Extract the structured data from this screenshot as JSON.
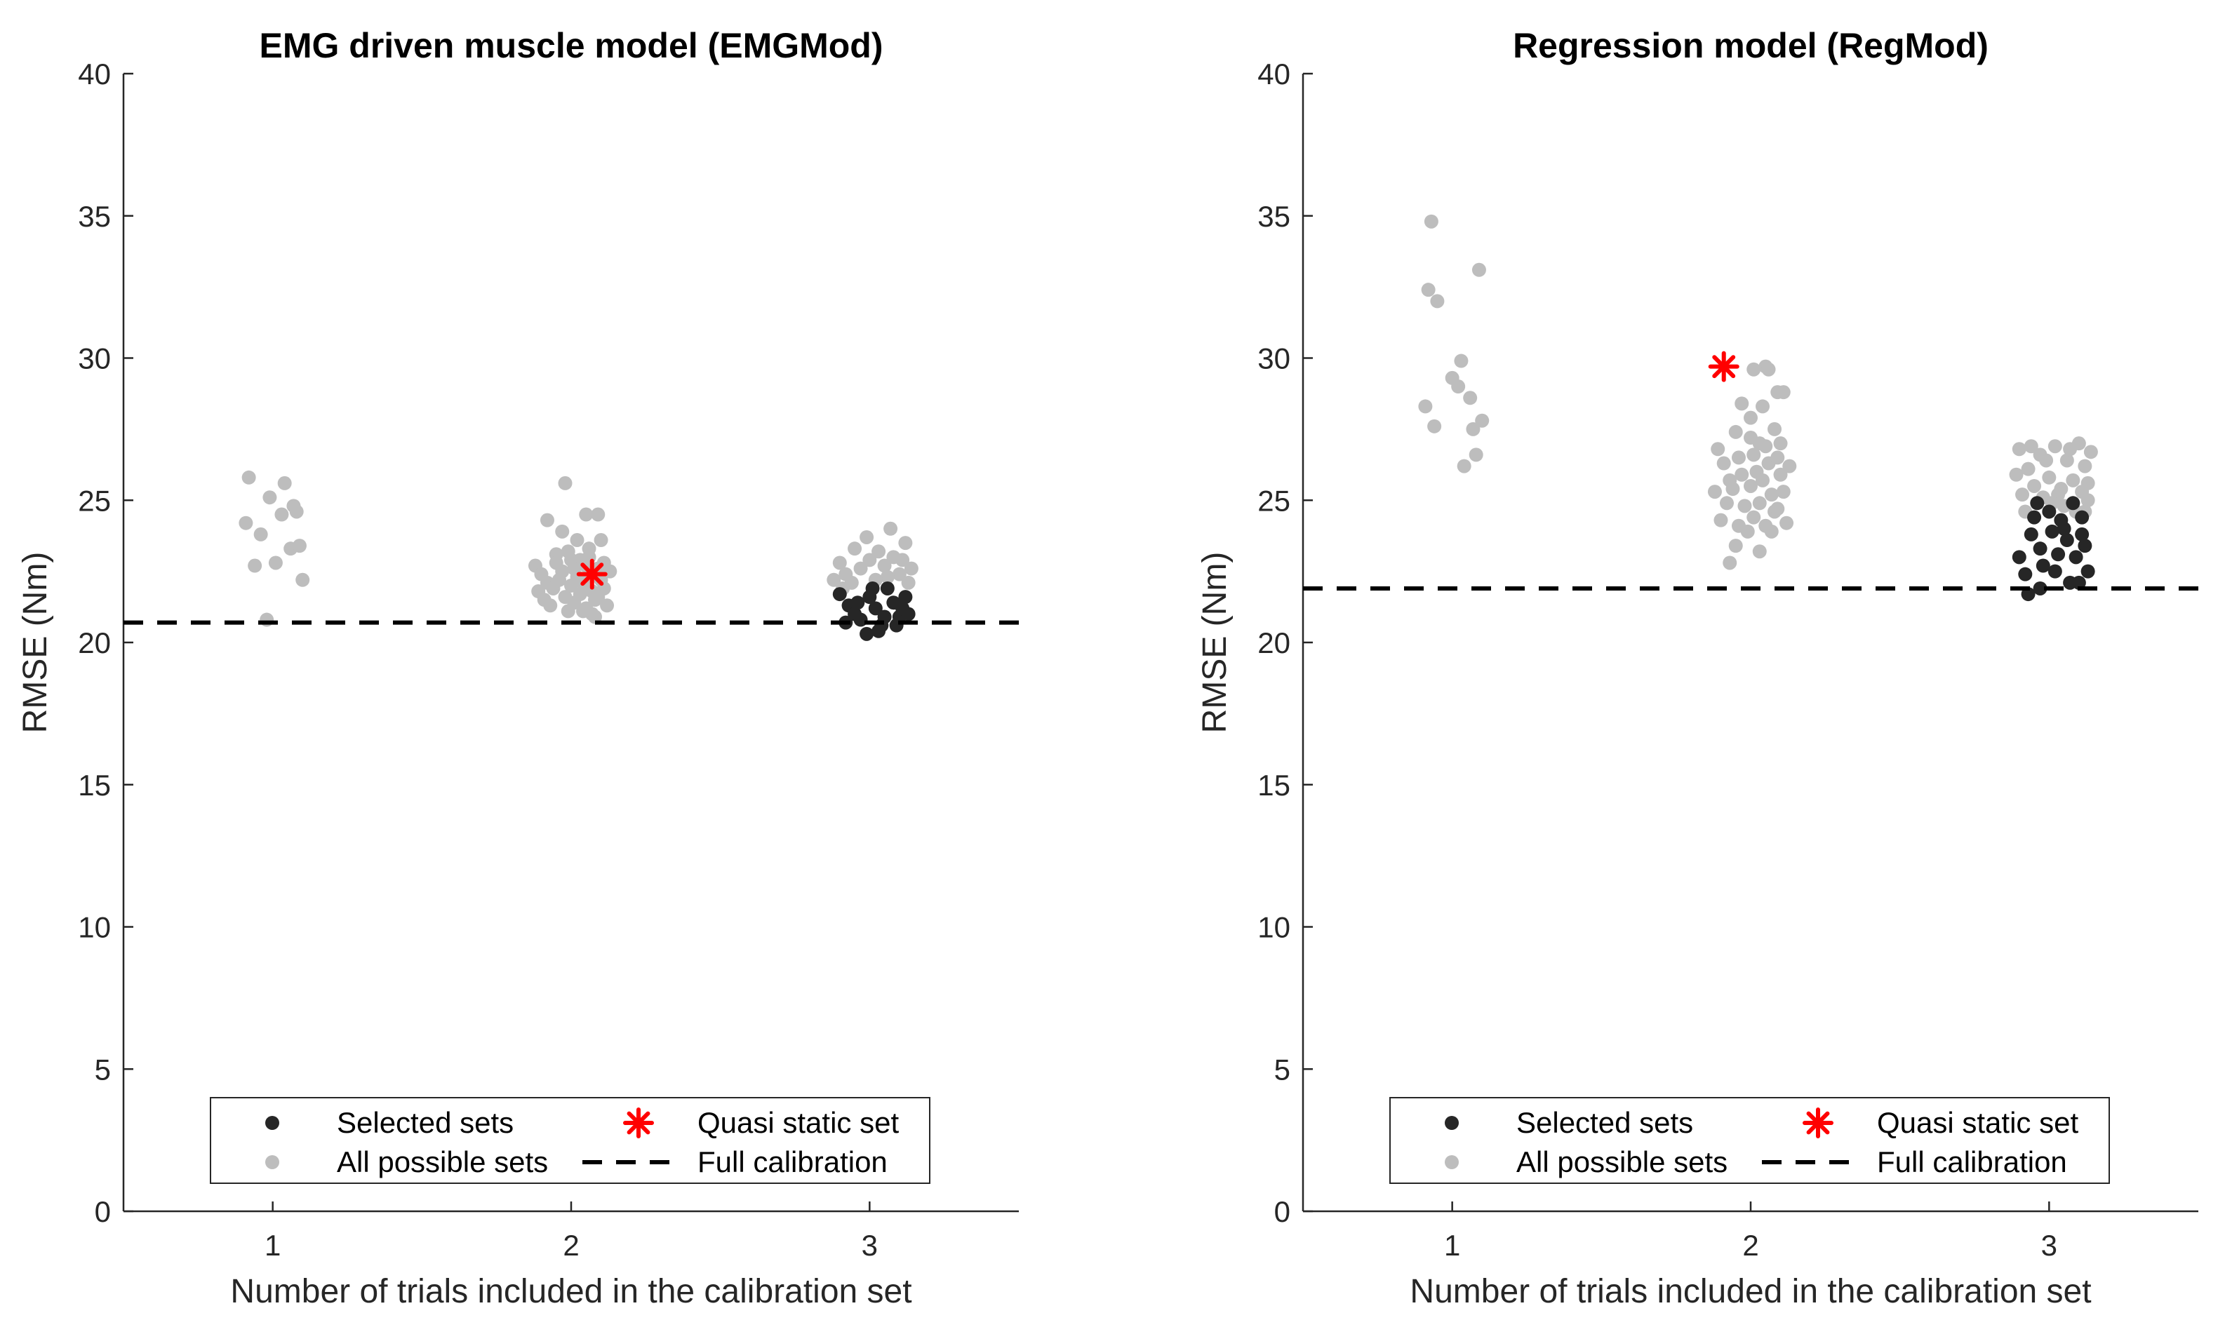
{
  "chart_data": [
    {
      "type": "scatter",
      "title": "EMG driven muscle model (EMGMod)",
      "xlabel": "Number of trials included in the calibration set",
      "ylabel": "RMSE (Nm)",
      "xlim": [
        0.5,
        3.5
      ],
      "ylim": [
        0,
        40
      ],
      "xticks": [
        1,
        2,
        3
      ],
      "yticks": [
        0,
        5,
        10,
        15,
        20,
        25,
        30,
        35,
        40
      ],
      "grid": false,
      "legend_position": "bottom",
      "legend": [
        "Selected sets",
        "Quasi static set",
        "All possible sets",
        "Full calibration"
      ],
      "colors": {
        "all": "#bdbdbd",
        "selected": "#262626",
        "quasi": "#ff0000",
        "line": "#000000"
      },
      "full_calibration": 20.7,
      "series": [
        {
          "name": "All possible sets",
          "points": [
            [
              0.92,
              25.8
            ],
            [
              0.99,
              25.1
            ],
            [
              1.04,
              25.6
            ],
            [
              1.07,
              24.8
            ],
            [
              0.91,
              24.2
            ],
            [
              1.03,
              24.5
            ],
            [
              1.08,
              24.6
            ],
            [
              0.96,
              23.8
            ],
            [
              1.06,
              23.3
            ],
            [
              1.09,
              23.4
            ],
            [
              1.01,
              22.8
            ],
            [
              0.94,
              22.7
            ],
            [
              1.1,
              22.2
            ],
            [
              0.98,
              20.8
            ],
            [
              1.92,
              24.3
            ],
            [
              1.98,
              25.6
            ],
            [
              2.05,
              24.5
            ],
            [
              2.09,
              24.5
            ],
            [
              1.97,
              23.9
            ],
            [
              2.02,
              23.6
            ],
            [
              2.1,
              23.6
            ],
            [
              2.06,
              23.3
            ],
            [
              1.95,
              23.1
            ],
            [
              2.03,
              22.9
            ],
            [
              1.88,
              22.7
            ],
            [
              1.9,
              22.4
            ],
            [
              1.92,
              22.1
            ],
            [
              1.89,
              21.8
            ],
            [
              1.91,
              21.5
            ],
            [
              1.95,
              22.8
            ],
            [
              1.97,
              22.5
            ],
            [
              1.96,
              22.2
            ],
            [
              1.94,
              21.9
            ],
            [
              1.98,
              21.6
            ],
            [
              2.0,
              22.9
            ],
            [
              2.01,
              22.6
            ],
            [
              2.02,
              22.3
            ],
            [
              2.0,
              22.0
            ],
            [
              2.03,
              21.7
            ],
            [
              2.01,
              21.4
            ],
            [
              2.05,
              22.7
            ],
            [
              2.06,
              22.4
            ],
            [
              2.04,
              22.1
            ],
            [
              2.07,
              21.8
            ],
            [
              2.08,
              21.5
            ],
            [
              2.05,
              21.2
            ],
            [
              2.09,
              22.6
            ],
            [
              2.1,
              22.2
            ],
            [
              2.11,
              21.9
            ],
            [
              2.09,
              21.6
            ],
            [
              2.12,
              21.3
            ],
            [
              2.07,
              21.0
            ],
            [
              2.08,
              20.9
            ],
            [
              2.04,
              21.1
            ],
            [
              1.93,
              21.3
            ],
            [
              1.99,
              21.1
            ],
            [
              2.06,
              23.0
            ],
            [
              1.99,
              23.2
            ],
            [
              2.11,
              22.8
            ],
            [
              2.13,
              22.5
            ],
            [
              2.9,
              22.8
            ],
            [
              2.92,
              22.4
            ],
            [
              2.95,
              23.3
            ],
            [
              2.97,
              22.6
            ],
            [
              3.0,
              22.9
            ],
            [
              3.03,
              23.2
            ],
            [
              3.05,
              22.7
            ],
            [
              3.07,
              24.0
            ],
            [
              3.08,
              23.0
            ],
            [
              3.1,
              22.4
            ],
            [
              3.12,
              23.5
            ],
            [
              3.13,
              22.1
            ],
            [
              3.06,
              22.3
            ],
            [
              3.02,
              22.2
            ],
            [
              2.94,
              22.1
            ],
            [
              2.88,
              22.2
            ],
            [
              2.99,
              23.7
            ],
            [
              3.11,
              22.9
            ],
            [
              2.91,
              21.9
            ],
            [
              3.14,
              22.6
            ]
          ]
        },
        {
          "name": "Selected sets",
          "points": [
            [
              2.9,
              21.7
            ],
            [
              2.93,
              21.3
            ],
            [
              2.95,
              21.0
            ],
            [
              2.97,
              20.8
            ],
            [
              2.99,
              20.3
            ],
            [
              3.0,
              21.6
            ],
            [
              3.02,
              21.2
            ],
            [
              3.04,
              20.6
            ],
            [
              3.06,
              21.9
            ],
            [
              3.08,
              21.4
            ],
            [
              3.1,
              20.9
            ],
            [
              3.12,
              21.6
            ],
            [
              3.13,
              21.0
            ],
            [
              2.92,
              20.7
            ],
            [
              3.01,
              21.9
            ],
            [
              3.05,
              20.9
            ],
            [
              2.96,
              21.4
            ],
            [
              3.09,
              20.6
            ],
            [
              3.03,
              20.4
            ],
            [
              3.11,
              21.2
            ]
          ]
        },
        {
          "name": "Quasi static set",
          "points": [
            [
              2.07,
              22.4
            ]
          ]
        }
      ]
    },
    {
      "type": "scatter",
      "title": "Regression model (RegMod)",
      "xlabel": "Number of trials included in the calibration set",
      "ylabel": "RMSE (Nm)",
      "xlim": [
        0.5,
        3.5
      ],
      "ylim": [
        0,
        40
      ],
      "xticks": [
        1,
        2,
        3
      ],
      "yticks": [
        0,
        5,
        10,
        15,
        20,
        25,
        30,
        35,
        40
      ],
      "grid": false,
      "legend_position": "bottom",
      "legend": [
        "Selected sets",
        "Quasi static set",
        "All possible sets",
        "Full calibration"
      ],
      "colors": {
        "all": "#bdbdbd",
        "selected": "#262626",
        "quasi": "#ff0000",
        "line": "#000000"
      },
      "full_calibration": 21.9,
      "series": [
        {
          "name": "All possible sets",
          "points": [
            [
              0.93,
              34.8
            ],
            [
              1.09,
              33.1
            ],
            [
              0.92,
              32.4
            ],
            [
              0.95,
              32.0
            ],
            [
              1.03,
              29.9
            ],
            [
              1.0,
              29.3
            ],
            [
              0.91,
              28.3
            ],
            [
              1.06,
              28.6
            ],
            [
              1.1,
              27.8
            ],
            [
              0.94,
              27.6
            ],
            [
              1.07,
              27.5
            ],
            [
              1.08,
              26.6
            ],
            [
              1.04,
              26.2
            ],
            [
              1.02,
              29.0
            ],
            [
              2.05,
              29.7
            ],
            [
              2.01,
              29.6
            ],
            [
              2.06,
              29.6
            ],
            [
              2.09,
              28.8
            ],
            [
              2.11,
              28.8
            ],
            [
              2.04,
              28.3
            ],
            [
              1.97,
              28.4
            ],
            [
              2.0,
              27.9
            ],
            [
              2.08,
              27.5
            ],
            [
              2.03,
              27.0
            ],
            [
              1.89,
              26.8
            ],
            [
              1.91,
              26.3
            ],
            [
              1.93,
              25.7
            ],
            [
              1.88,
              25.3
            ],
            [
              1.92,
              24.9
            ],
            [
              1.9,
              24.3
            ],
            [
              1.95,
              27.4
            ],
            [
              1.96,
              26.5
            ],
            [
              1.97,
              25.9
            ],
            [
              1.94,
              25.4
            ],
            [
              1.98,
              24.8
            ],
            [
              1.96,
              24.1
            ],
            [
              2.0,
              27.2
            ],
            [
              2.01,
              26.6
            ],
            [
              2.02,
              26.0
            ],
            [
              2.0,
              25.5
            ],
            [
              2.03,
              24.9
            ],
            [
              2.01,
              24.4
            ],
            [
              2.05,
              26.9
            ],
            [
              2.06,
              26.3
            ],
            [
              2.04,
              25.7
            ],
            [
              2.07,
              25.2
            ],
            [
              2.08,
              24.6
            ],
            [
              2.05,
              24.1
            ],
            [
              2.09,
              26.5
            ],
            [
              2.1,
              25.9
            ],
            [
              2.11,
              25.3
            ],
            [
              2.09,
              24.7
            ],
            [
              2.12,
              24.2
            ],
            [
              2.1,
              27.0
            ],
            [
              1.93,
              22.8
            ],
            [
              2.03,
              23.2
            ],
            [
              1.99,
              23.9
            ],
            [
              2.07,
              23.9
            ],
            [
              1.95,
              23.4
            ],
            [
              2.13,
              26.2
            ],
            [
              2.9,
              26.8
            ],
            [
              2.93,
              26.1
            ],
            [
              2.95,
              25.5
            ],
            [
              2.97,
              26.6
            ],
            [
              3.0,
              25.8
            ],
            [
              3.02,
              26.9
            ],
            [
              3.04,
              25.4
            ],
            [
              3.06,
              26.4
            ],
            [
              3.08,
              25.7
            ],
            [
              3.1,
              27.0
            ],
            [
              3.12,
              26.2
            ],
            [
              3.13,
              25.6
            ],
            [
              2.91,
              25.2
            ],
            [
              2.94,
              26.9
            ],
            [
              2.99,
              26.4
            ],
            [
              3.03,
              25.2
            ],
            [
              3.07,
              26.8
            ],
            [
              3.11,
              25.3
            ],
            [
              3.14,
              26.7
            ],
            [
              2.89,
              25.9
            ],
            [
              2.96,
              24.9
            ],
            [
              3.01,
              24.9
            ],
            [
              3.09,
              24.6
            ],
            [
              3.12,
              24.6
            ],
            [
              2.92,
              24.6
            ],
            [
              3.05,
              24.8
            ],
            [
              3.13,
              25.0
            ],
            [
              2.98,
              25.1
            ]
          ]
        },
        {
          "name": "Selected sets",
          "points": [
            [
              2.9,
              23.0
            ],
            [
              2.92,
              22.4
            ],
            [
              2.94,
              23.8
            ],
            [
              2.95,
              24.4
            ],
            [
              2.97,
              23.3
            ],
            [
              2.98,
              22.7
            ],
            [
              3.0,
              24.6
            ],
            [
              3.01,
              23.9
            ],
            [
              3.03,
              23.1
            ],
            [
              3.04,
              24.3
            ],
            [
              3.06,
              23.6
            ],
            [
              3.08,
              24.9
            ],
            [
              3.09,
              23.0
            ],
            [
              3.11,
              24.4
            ],
            [
              3.12,
              23.4
            ],
            [
              3.13,
              22.5
            ],
            [
              2.93,
              21.7
            ],
            [
              2.97,
              21.9
            ],
            [
              3.07,
              22.1
            ],
            [
              3.1,
              22.1
            ],
            [
              3.02,
              22.5
            ],
            [
              2.96,
              24.9
            ],
            [
              3.05,
              24.0
            ],
            [
              3.11,
              23.8
            ]
          ]
        },
        {
          "name": "Quasi static set",
          "points": [
            [
              1.91,
              29.7
            ]
          ]
        }
      ]
    }
  ]
}
